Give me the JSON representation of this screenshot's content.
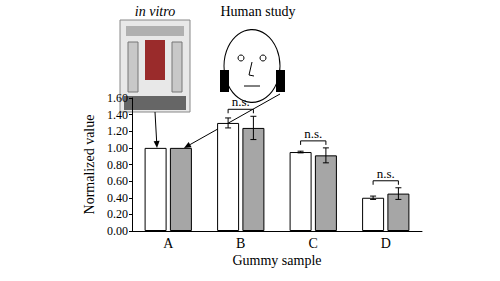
{
  "chart_data": {
    "type": "bar",
    "categories": [
      "A",
      "B",
      "C",
      "D"
    ],
    "x_label": "Gummy sample",
    "y_label": "Normalized value",
    "series": [
      {
        "color": "#ffffff",
        "values": [
          1.0,
          1.3,
          0.95,
          0.4
        ],
        "errors": [
          0,
          0.06,
          0.01,
          0.02
        ]
      },
      {
        "color": "#a6a6a6",
        "values": [
          1.0,
          1.24,
          0.91,
          0.45
        ],
        "errors": [
          0,
          0.14,
          0.09,
          0.07
        ]
      }
    ],
    "ylim": [
      0,
      1.6
    ],
    "yticks": [
      {
        "value": 0,
        "label": "0.00"
      },
      {
        "value": 0.2,
        "label": "0.20"
      },
      {
        "value": 0.4,
        "label": "0.40"
      },
      {
        "value": 0.6,
        "label": "0.60"
      },
      {
        "value": 0.8,
        "label": "0.80"
      },
      {
        "value": 1.0,
        "label": "1.00"
      },
      {
        "value": 1.2,
        "label": "1.20"
      },
      {
        "value": 1.4,
        "label": "1.40"
      },
      {
        "value": 1.6,
        "label": "1.60"
      }
    ],
    "annotations": [
      {
        "text": "in vitro"
      },
      {
        "text": "Human study"
      }
    ],
    "significance": [
      {
        "category": "B",
        "text": "n.s."
      },
      {
        "category": "C",
        "text": "n.s."
      },
      {
        "category": "D",
        "text": "n.s."
      }
    ]
  }
}
